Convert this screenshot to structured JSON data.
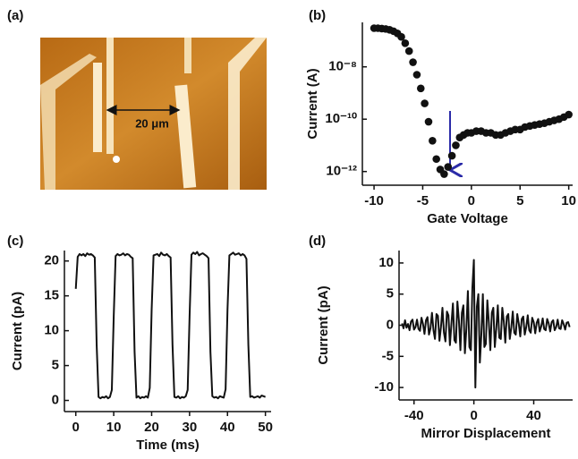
{
  "chart_data": [
    {
      "type": "image",
      "panel_label": "(a)",
      "scale_label": "20 μm"
    },
    {
      "type": "scatter",
      "panel_label": "(b)",
      "xlabel": "Gate Voltage",
      "ylabel": "Current (A)",
      "log_y": true,
      "color": "#111111",
      "x": [
        -10,
        -9.6,
        -9.2,
        -8.8,
        -8.4,
        -8,
        -7.6,
        -7.2,
        -6.8,
        -6.4,
        -6,
        -5.6,
        -5.2,
        -4.8,
        -4.4,
        -4,
        -3.6,
        -3.2,
        -2.8,
        -2.4,
        -2,
        -1.6,
        -1.2,
        -0.8,
        -0.4,
        0,
        0.5,
        1,
        1.5,
        2,
        2.5,
        3,
        3.5,
        4,
        4.5,
        5,
        5.5,
        6,
        6.5,
        7,
        7.5,
        8,
        8.5,
        9,
        9.5,
        10
      ],
      "values": [
        3e-07,
        3e-07,
        2.9e-07,
        2.8e-07,
        2.6e-07,
        2.3e-07,
        1.9e-07,
        1.4e-07,
        8e-08,
        4e-08,
        1.5e-08,
        5e-09,
        1.5e-09,
        4e-10,
        8e-11,
        1.5e-11,
        3e-12,
        1.2e-12,
        8e-13,
        1.5e-12,
        4e-12,
        1e-11,
        2e-11,
        2.5e-11,
        3e-11,
        3e-11,
        3.5e-11,
        3.5e-11,
        3e-11,
        3e-11,
        2.5e-11,
        2.5e-11,
        3e-11,
        3.5e-11,
        4e-11,
        4e-11,
        5e-11,
        5.5e-11,
        6e-11,
        6.5e-11,
        7e-11,
        8e-11,
        9e-11,
        1e-10,
        1.2e-10,
        1.5e-10
      ],
      "xlim": [
        -11.2,
        10.4
      ],
      "xticks": [
        -10,
        -5,
        0,
        5,
        10
      ],
      "ylim": [
        3e-13,
        5e-07
      ],
      "yticks": [
        {
          "value": 1e-12,
          "label": "10⁻¹²"
        },
        {
          "value": 1e-10,
          "label": "10⁻¹⁰"
        },
        {
          "value": 1e-08,
          "label": "10⁻⁸"
        }
      ]
    },
    {
      "type": "line",
      "panel_label": "(c)",
      "xlabel": "Time (ms)",
      "ylabel": "Current (pA)",
      "color": "#111111",
      "x": [
        0,
        0.5,
        1,
        1.5,
        2,
        2.5,
        3,
        3.5,
        4,
        4.5,
        5,
        5.5,
        6,
        6.5,
        7,
        7.5,
        8,
        8.5,
        9,
        9.5,
        10,
        10.5,
        11,
        11.5,
        12,
        12.5,
        13,
        13.5,
        14,
        14.5,
        15,
        15.5,
        16,
        16.5,
        17,
        17.5,
        18,
        18.5,
        19,
        19.5,
        20,
        20.5,
        21,
        21.5,
        22,
        22.5,
        23,
        23.5,
        24,
        24.5,
        25,
        25.5,
        26,
        26.5,
        27,
        27.5,
        28,
        28.5,
        29,
        29.5,
        30,
        30.5,
        31,
        31.5,
        32,
        32.5,
        33,
        33.5,
        34,
        34.5,
        35,
        35.5,
        36,
        36.5,
        37,
        37.5,
        38,
        38.5,
        39,
        39.5,
        40,
        40.5,
        41,
        41.5,
        42,
        42.5,
        43,
        43.5,
        44,
        44.5,
        45,
        45.5,
        46,
        46.5,
        47,
        47.5,
        48,
        48.5,
        49,
        49.5,
        50
      ],
      "values": [
        16,
        20.6,
        21,
        20.8,
        21,
        20.7,
        21.1,
        20.9,
        21,
        20.8,
        20.5,
        8,
        0.5,
        0.3,
        0.5,
        0.4,
        0.6,
        0.3,
        0.5,
        1.5,
        12,
        20.7,
        21,
        20.8,
        20.9,
        21.1,
        20.8,
        21,
        20.9,
        20.6,
        20.4,
        7,
        0.4,
        0.6,
        0.3,
        0.5,
        0.4,
        0.6,
        0.4,
        1.8,
        13,
        20.8,
        20.9,
        21,
        20.7,
        21.2,
        20.9,
        20.8,
        21,
        20.7,
        20.5,
        8,
        0.5,
        0.4,
        0.6,
        0.3,
        0.5,
        0.4,
        0.6,
        1.5,
        12,
        20.9,
        21.2,
        21,
        21.3,
        20.8,
        21,
        21.1,
        20.9,
        20.7,
        20.4,
        7,
        0.6,
        0.4,
        0.5,
        0.3,
        0.6,
        0.5,
        0.4,
        1.6,
        13,
        20.8,
        21,
        21.2,
        20.9,
        21,
        21.1,
        20.8,
        21,
        20.8,
        20.3,
        8,
        0.5,
        0.6,
        0.4,
        0.5,
        0.6,
        0.4,
        0.7,
        0.6,
        0.5
      ],
      "xlim": [
        -3,
        51.5
      ],
      "xticks": [
        0,
        10,
        20,
        30,
        40,
        50
      ],
      "ylim": [
        -1.6,
        21.5
      ],
      "yticks": [
        0,
        5,
        10,
        15,
        20
      ]
    },
    {
      "type": "line",
      "panel_label": "(d)",
      "xlabel": "Mirror Displacement",
      "ylabel": "Current (pA)",
      "color": "#111111",
      "x": [
        -48,
        -47,
        -46,
        -45,
        -44,
        -43,
        -42,
        -41,
        -40,
        -39,
        -38,
        -37,
        -36,
        -35,
        -34,
        -33,
        -32,
        -31,
        -30,
        -29,
        -28,
        -27,
        -26,
        -25,
        -24,
        -23,
        -22,
        -21,
        -20,
        -19,
        -18,
        -17,
        -16,
        -15,
        -14,
        -13,
        -12,
        -11,
        -10,
        -9,
        -8,
        -7,
        -6,
        -5,
        -4,
        -3,
        -2,
        -1,
        0,
        1,
        2,
        3,
        4,
        5,
        6,
        7,
        8,
        9,
        10,
        11,
        12,
        13,
        14,
        15,
        16,
        17,
        18,
        19,
        20,
        21,
        22,
        23,
        24,
        25,
        26,
        27,
        28,
        29,
        30,
        31,
        32,
        33,
        34,
        35,
        36,
        37,
        38,
        39,
        40,
        41,
        42,
        43,
        44,
        45,
        46,
        47,
        48,
        49,
        50,
        51,
        52,
        53,
        54,
        55,
        56,
        57,
        58,
        59,
        60,
        61,
        62,
        63,
        64
      ],
      "values": [
        0.3,
        -0.5,
        0.8,
        -0.4,
        0.2,
        -0.8,
        0.6,
        0.9,
        -0.7,
        -0.3,
        0.9,
        -0.6,
        -0.9,
        1.2,
        0.2,
        -1.4,
        0.8,
        1.3,
        -1.5,
        -0.5,
        2,
        -0.8,
        -2.2,
        1.8,
        1.5,
        -2.5,
        -0.3,
        2.8,
        -1.2,
        -2.6,
        2.2,
        1.6,
        -3.2,
        0.2,
        3.5,
        -2.4,
        -2.8,
        3.8,
        0.8,
        -4,
        2,
        3.2,
        -4.5,
        -0.5,
        5.5,
        -3.5,
        -4,
        6,
        10.5,
        -10,
        3,
        5,
        -6,
        -1.5,
        5,
        -3.5,
        -3,
        4,
        0.5,
        -4,
        2,
        2.8,
        -3.5,
        -0.5,
        3.2,
        -2,
        -2.2,
        2.8,
        0.6,
        -2.8,
        1.4,
        1.8,
        -2.2,
        -0.4,
        2.2,
        -1.2,
        -1.5,
        1.8,
        0.3,
        -1.8,
        1,
        1.4,
        -1.5,
        -0.3,
        1.6,
        -0.8,
        -1.2,
        1.2,
        0.5,
        -1.3,
        0.4,
        1,
        -1,
        -0.2,
        1.1,
        -0.6,
        -0.8,
        1,
        0.3,
        -1,
        0.5,
        0.8,
        -0.8,
        -0.3,
        0.9,
        -0.5,
        -0.6,
        0.8,
        0.2,
        -0.7,
        0.4,
        0.5,
        -0.3
      ],
      "xlim": [
        -50,
        66
      ],
      "xticks": [
        -40,
        0,
        40
      ],
      "ylim": [
        -12,
        12
      ],
      "yticks": [
        -10,
        -5,
        0,
        5,
        10
      ]
    }
  ]
}
